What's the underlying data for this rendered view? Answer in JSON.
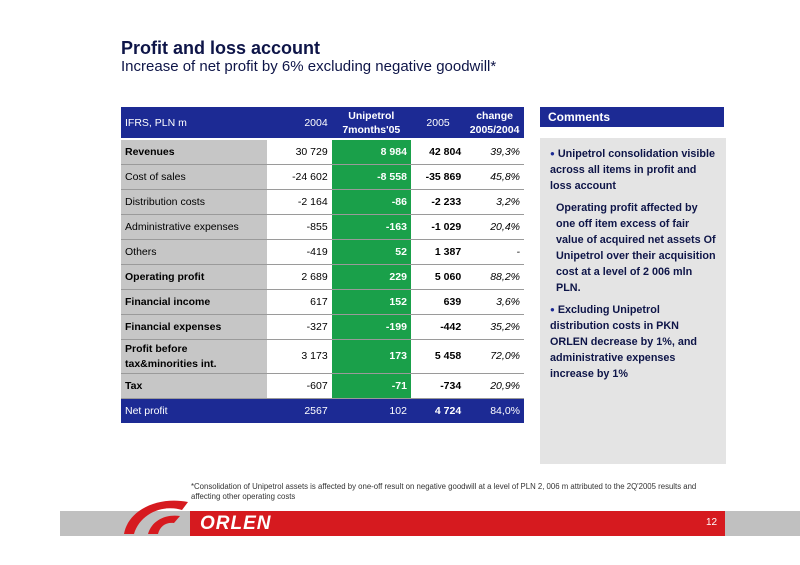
{
  "header": {
    "title": "Profit and loss account",
    "subtitle": "Increase of net profit by 6% excluding negative goodwill*"
  },
  "table": {
    "columns": {
      "label": "IFRS, PLN m",
      "y2004": "2004",
      "unipetrol_l1": "Unipetrol",
      "unipetrol_l2": "7months'05",
      "y2005": "2005",
      "change_l1": "change",
      "change_l2": "2005/2004"
    },
    "rows": [
      {
        "label": "Revenues",
        "y2004": "30 729",
        "unipetrol": "8 984",
        "y2005": "42 804",
        "change": "39,3%"
      },
      {
        "label": "Cost of sales",
        "y2004": "-24 602",
        "unipetrol": "-8 558",
        "y2005": "-35 869",
        "change": "45,8%"
      },
      {
        "label": "Distribution costs",
        "y2004": "-2 164",
        "unipetrol": "-86",
        "y2005": "-2 233",
        "change": "3,2%"
      },
      {
        "label": "Administrative expenses",
        "y2004": "-855",
        "unipetrol": "-163",
        "y2005": "-1 029",
        "change": "20,4%"
      },
      {
        "label": "Others",
        "y2004": "-419",
        "unipetrol": "52",
        "y2005": "1 387",
        "change": "-"
      },
      {
        "label": "Operating profit",
        "y2004": "2 689",
        "unipetrol": "229",
        "y2005": "5 060",
        "change": "88,2%"
      },
      {
        "label": "Financial income",
        "y2004": "617",
        "unipetrol": "152",
        "y2005": "639",
        "change": "3,6%"
      },
      {
        "label": "Financial expenses",
        "y2004": "-327",
        "unipetrol": "-199",
        "y2005": "-442",
        "change": "35,2%"
      },
      {
        "label_l1": "Profit before",
        "label_l2": "tax&minorities int.",
        "y2004": "3 173",
        "unipetrol": "173",
        "y2005": "5 458",
        "change": "72,0%"
      },
      {
        "label": "Tax",
        "y2004": "-607",
        "unipetrol": "-71",
        "y2005": "-734",
        "change": "20,9%"
      },
      {
        "label": "Net profit",
        "y2004": "2567",
        "unipetrol": "102",
        "y2005": "4 724",
        "change": "84,0%"
      }
    ]
  },
  "comments": {
    "heading": "Comments",
    "items": [
      "Unipetrol consolidation visible across all items in profit and loss account",
      "Operating profit affected by one off item excess of fair value of acquired net assets Of Unipetrol over their acquisition cost at a level of 2 006 mln PLN.",
      "Excluding Unipetrol distribution costs in PKN ORLEN decrease by 1%, and administrative expenses increase by 1%"
    ]
  },
  "footnote": "*Consolidation of Unipetrol assets is affected by one-off result on negative goodwill at a level of PLN 2, 006 m attributed to the 2Q'2005 results and affecting other operating costs",
  "footer": {
    "logo_text": "ORLEN",
    "page_number": "12"
  },
  "colors": {
    "navy": "#1c2a94",
    "green": "#1aa04a",
    "red": "#d61a1f",
    "grey": "#c6c6c6"
  }
}
